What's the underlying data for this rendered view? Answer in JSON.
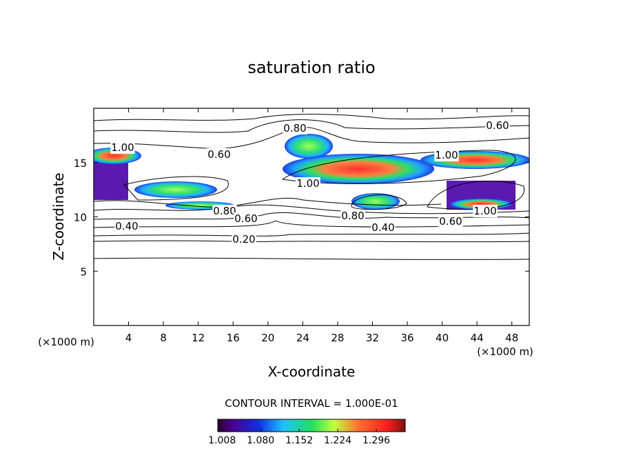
{
  "chart_data": {
    "type": "contour",
    "title": "saturation ratio",
    "x_label": "X-coordinate",
    "y_label": "Z-coordinate",
    "x_unit": "(×1000 m)",
    "y_unit": "(×1000 m)",
    "xlim": [
      0,
      50
    ],
    "xticks": [
      4,
      8,
      12,
      16,
      20,
      24,
      28,
      32,
      36,
      40,
      44,
      48
    ],
    "ylim": [
      0,
      20
    ],
    "yticks": [
      5,
      10,
      15
    ],
    "contour_interval": "CONTOUR INTERVAL = 1.000E-01",
    "contour_labels": [
      {
        "value": 0.6,
        "label": "0.60"
      },
      {
        "value": 0.8,
        "label": "0.80"
      },
      {
        "value": 1,
        "label": "1.00"
      },
      {
        "value": 0.6,
        "label": "0.60"
      },
      {
        "value": 1,
        "label": "1.00"
      },
      {
        "value": 1,
        "label": "1.00"
      },
      {
        "value": 0.8,
        "label": "0.80"
      },
      {
        "value": 0.6,
        "label": "0.60"
      },
      {
        "value": 0.8,
        "label": "0.80"
      },
      {
        "value": 1,
        "label": "1.00"
      },
      {
        "value": 0.6,
        "label": "0.60"
      },
      {
        "value": 0.4,
        "label": "0.40"
      },
      {
        "value": 0.4,
        "label": "0.40"
      },
      {
        "value": 0.2,
        "label": "0.20"
      }
    ],
    "colorbar": {
      "lim": [
        1.0,
        1.35
      ],
      "ticks": [
        1.008,
        {
          "value": 1.08,
          "label": "1.080"
        },
        1.152,
        1.224,
        1.296
      ]
    }
  }
}
